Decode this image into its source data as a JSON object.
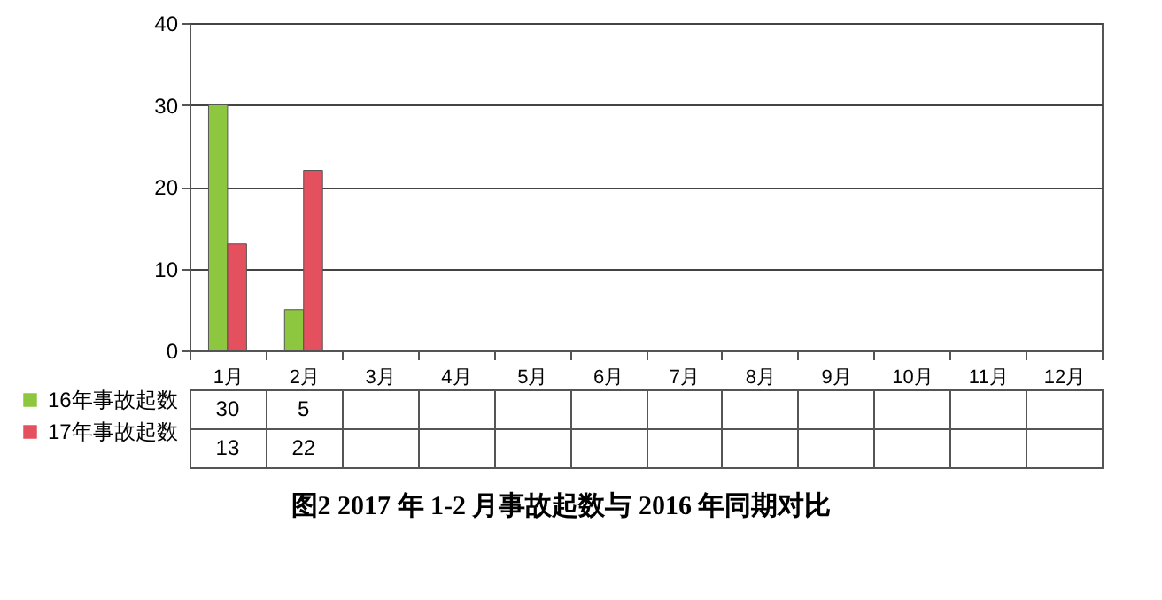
{
  "chart_data": {
    "type": "bar",
    "title": "图2   2017 年 1-2 月事故起数与 2016 年同期对比",
    "categories": [
      "1月",
      "2月",
      "3月",
      "4月",
      "5月",
      "6月",
      "7月",
      "8月",
      "9月",
      "10月",
      "11月",
      "12月"
    ],
    "series": [
      {
        "name": "16年事故起数",
        "color": "#8dc63f",
        "values": [
          30,
          5,
          null,
          null,
          null,
          null,
          null,
          null,
          null,
          null,
          null,
          null
        ]
      },
      {
        "name": "17年事故起数",
        "color": "#e5505f",
        "values": [
          13,
          22,
          null,
          null,
          null,
          null,
          null,
          null,
          null,
          null,
          null,
          null
        ]
      }
    ],
    "ylim": [
      0,
      40
    ],
    "yticks": [
      0,
      10,
      20,
      30,
      40
    ],
    "grid": "y",
    "legend": "bottom left",
    "data_labels": true
  }
}
